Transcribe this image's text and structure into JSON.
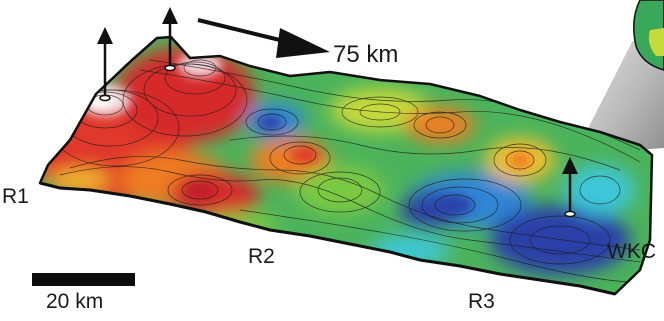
{
  "labels": {
    "r1": "R1",
    "r2": "R2",
    "r3": "R3",
    "wkc": "WKC",
    "distance": "75 km",
    "scale": "20 km"
  },
  "colors": {
    "contour": "#1c1c1c",
    "outline": "#111111",
    "arrow": "#111111"
  },
  "relief_legend": [
    "#2a3fa8",
    "#2e86d6",
    "#3ec7d9",
    "#3aa85a",
    "#7ac943",
    "#c6d93a",
    "#f2c12e",
    "#ee7d22",
    "#e0382a",
    "#c01e2a",
    "#f2d6da",
    "#ffffff"
  ]
}
